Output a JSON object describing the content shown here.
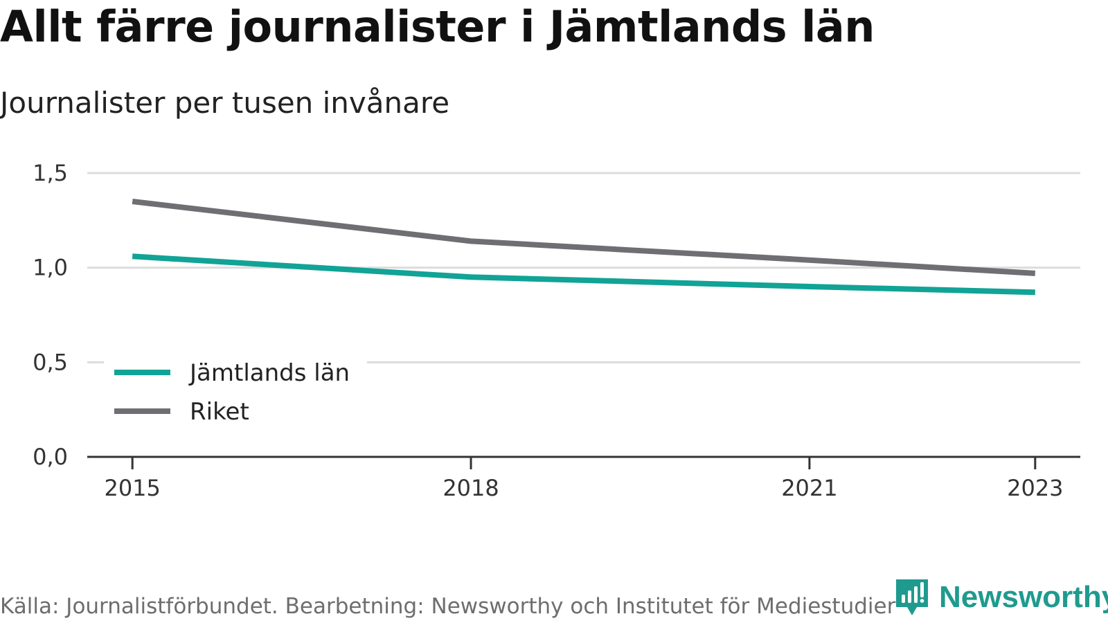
{
  "chart_data": {
    "type": "line",
    "title": "Allt färre journalister i Jämtlands län",
    "subtitle": "Journalister per tusen invånare",
    "x": [
      2015,
      2018,
      2021,
      2023
    ],
    "x_tick_labels": [
      "2015",
      "2018",
      "2021",
      "2023"
    ],
    "series": [
      {
        "name": "Jämtlands län",
        "color": "#11a396",
        "values": [
          1.06,
          0.95,
          0.9,
          0.87
        ]
      },
      {
        "name": "Riket",
        "color": "#6f6e73",
        "values": [
          1.35,
          1.14,
          1.04,
          0.97
        ]
      }
    ],
    "y_ticks": [
      0.0,
      0.5,
      1.0,
      1.5
    ],
    "y_tick_labels": [
      "0,0",
      "0,5",
      "1,0",
      "1,5"
    ],
    "ylim": [
      0,
      1.5
    ],
    "xlim": [
      2014.6,
      2023.4
    ],
    "grid": true,
    "legend_position": "bottom-left",
    "xlabel": "",
    "ylabel": ""
  },
  "footer": {
    "source": "Källa: Journalistförbundet. Bearbetning: Newsworthy och Institutet för Mediestudier",
    "brand": "Newsworthy",
    "brand_color": "#1f9a8e"
  }
}
